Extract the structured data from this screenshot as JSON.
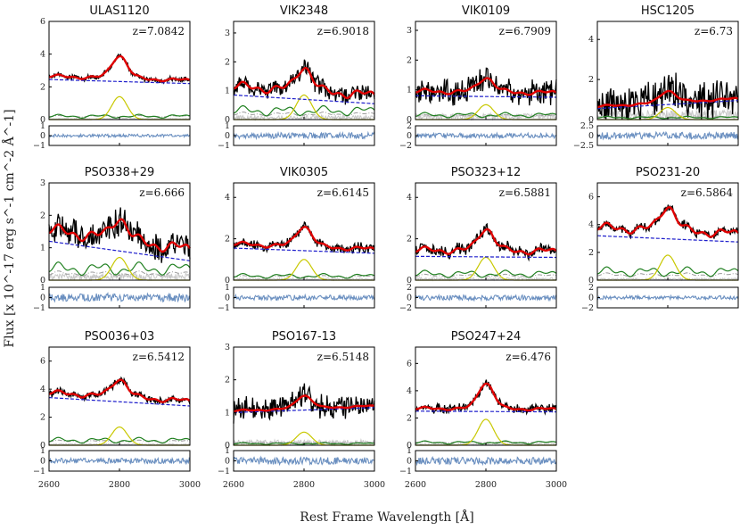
{
  "chart_data": {
    "type": "line",
    "ylabel": "Flux [x 10^-17 erg s^-1 cm^-2 Å^-1]",
    "xlabel": "Rest Frame Wavelength [Å]",
    "xlim": [
      2600,
      3000
    ],
    "xticks": [
      "2600",
      "2800",
      "3000"
    ],
    "colors": {
      "data": "#000000",
      "model": "#e00000",
      "continuum": "#1f1fcc",
      "line": "#c8c800",
      "feii": "#208020",
      "residual": "#6a8fc0",
      "error": "#c8c8c8",
      "balmer": "#9a9a9a"
    },
    "panels": [
      {
        "title": "ULAS1120",
        "z": "z=7.0842",
        "zval": 7.0842,
        "ylim": [
          0,
          6
        ],
        "yticks": [
          0,
          2,
          4,
          6
        ],
        "cont": [
          2.45,
          2.2
        ],
        "peak": 1.4,
        "fe": 0.2,
        "noise": 0.12,
        "rlim": [
          -1,
          1
        ],
        "rticks": [
          -1,
          0,
          1
        ],
        "rnoise": 0.15
      },
      {
        "title": "VIK2348",
        "z": "z=6.9018",
        "zval": 6.9018,
        "ylim": [
          0,
          3.4
        ],
        "yticks": [
          0,
          1,
          2,
          3
        ],
        "cont": [
          0.85,
          0.55
        ],
        "peak": 0.85,
        "fe": 0.3,
        "noise": 0.25,
        "rlim": [
          -1,
          1
        ],
        "rticks": [
          -1,
          0,
          1
        ],
        "rnoise": 0.3
      },
      {
        "title": "VIK0109",
        "z": "z=6.7909",
        "zval": 6.7909,
        "ylim": [
          0,
          3.3
        ],
        "yticks": [
          0,
          1,
          2,
          3
        ],
        "cont": [
          0.8,
          0.75
        ],
        "peak": 0.5,
        "fe": 0.15,
        "noise": 0.35,
        "rlim": [
          -2,
          2
        ],
        "rticks": [
          -2,
          0,
          2
        ],
        "rnoise": 0.5
      },
      {
        "title": "HSC1205",
        "z": "z=6.73",
        "zval": 6.73,
        "ylim": [
          0,
          4.9
        ],
        "yticks": [
          0,
          2,
          4
        ],
        "cont": [
          0.55,
          0.95
        ],
        "peak": 0.6,
        "fe": 0.1,
        "noise": 0.8,
        "rlim": [
          -2.5,
          2.5
        ],
        "rticks": [
          -2.5,
          0.0,
          2.5
        ],
        "rnoise": 0.9
      },
      {
        "title": "PSO338+29",
        "z": "z=6.666",
        "zval": 6.666,
        "ylim": [
          0,
          3
        ],
        "yticks": [
          0,
          1,
          2,
          3
        ],
        "cont": [
          1.2,
          0.6
        ],
        "peak": 0.7,
        "fe": 0.35,
        "noise": 0.35,
        "rlim": [
          -1,
          1
        ],
        "rticks": [
          -1,
          0,
          1
        ],
        "rnoise": 0.4
      },
      {
        "title": "VIK0305",
        "z": "z=6.6145",
        "zval": 6.6145,
        "ylim": [
          0,
          4.7
        ],
        "yticks": [
          0,
          2,
          4
        ],
        "cont": [
          1.55,
          1.3
        ],
        "peak": 1.0,
        "fe": 0.2,
        "noise": 0.18,
        "rlim": [
          -1,
          1
        ],
        "rticks": [
          -1,
          0,
          1
        ],
        "rnoise": 0.25
      },
      {
        "title": "PSO323+12",
        "z": "z=6.5881",
        "zval": 6.5881,
        "ylim": [
          0,
          4.7
        ],
        "yticks": [
          0,
          2,
          4
        ],
        "cont": [
          1.15,
          1.1
        ],
        "peak": 1.1,
        "fe": 0.3,
        "noise": 0.22,
        "rlim": [
          -2,
          2
        ],
        "rticks": [
          -2,
          0,
          2
        ],
        "rnoise": 0.5
      },
      {
        "title": "PSO231-20",
        "z": "z=6.5864",
        "zval": 6.5864,
        "ylim": [
          0,
          7
        ],
        "yticks": [
          0,
          2,
          4,
          6
        ],
        "cont": [
          3.2,
          2.75
        ],
        "peak": 1.8,
        "fe": 0.6,
        "noise": 0.25,
        "rlim": [
          -2,
          2
        ],
        "rticks": [
          -2,
          0,
          2
        ],
        "rnoise": 0.35
      },
      {
        "title": "PSO036+03",
        "z": "z=6.5412",
        "zval": 6.5412,
        "ylim": [
          0,
          7
        ],
        "yticks": [
          0,
          2,
          4,
          6
        ],
        "cont": [
          3.4,
          2.8
        ],
        "peak": 1.3,
        "fe": 0.35,
        "noise": 0.2,
        "rlim": [
          -1,
          1
        ],
        "rticks": [
          -1,
          0,
          1
        ],
        "rnoise": 0.25
      },
      {
        "title": "PSO167-13",
        "z": "z=6.5148",
        "zval": 6.5148,
        "ylim": [
          0,
          3
        ],
        "yticks": [
          0,
          1,
          2,
          3
        ],
        "cont": [
          1.0,
          1.15
        ],
        "peak": 0.4,
        "fe": 0.05,
        "noise": 0.28,
        "rlim": [
          -1,
          1
        ],
        "rticks": [
          -1,
          0,
          1
        ],
        "rnoise": 0.35
      },
      {
        "title": "PSO247+24",
        "z": "z=6.476",
        "zval": 6.476,
        "ylim": [
          0,
          7.2
        ],
        "yticks": [
          0,
          2,
          4,
          6
        ],
        "cont": [
          2.5,
          2.45
        ],
        "peak": 1.9,
        "fe": 0.2,
        "noise": 0.25,
        "rlim": [
          -1,
          1
        ],
        "rticks": [
          -1,
          0,
          1
        ],
        "rnoise": 0.35
      }
    ]
  }
}
